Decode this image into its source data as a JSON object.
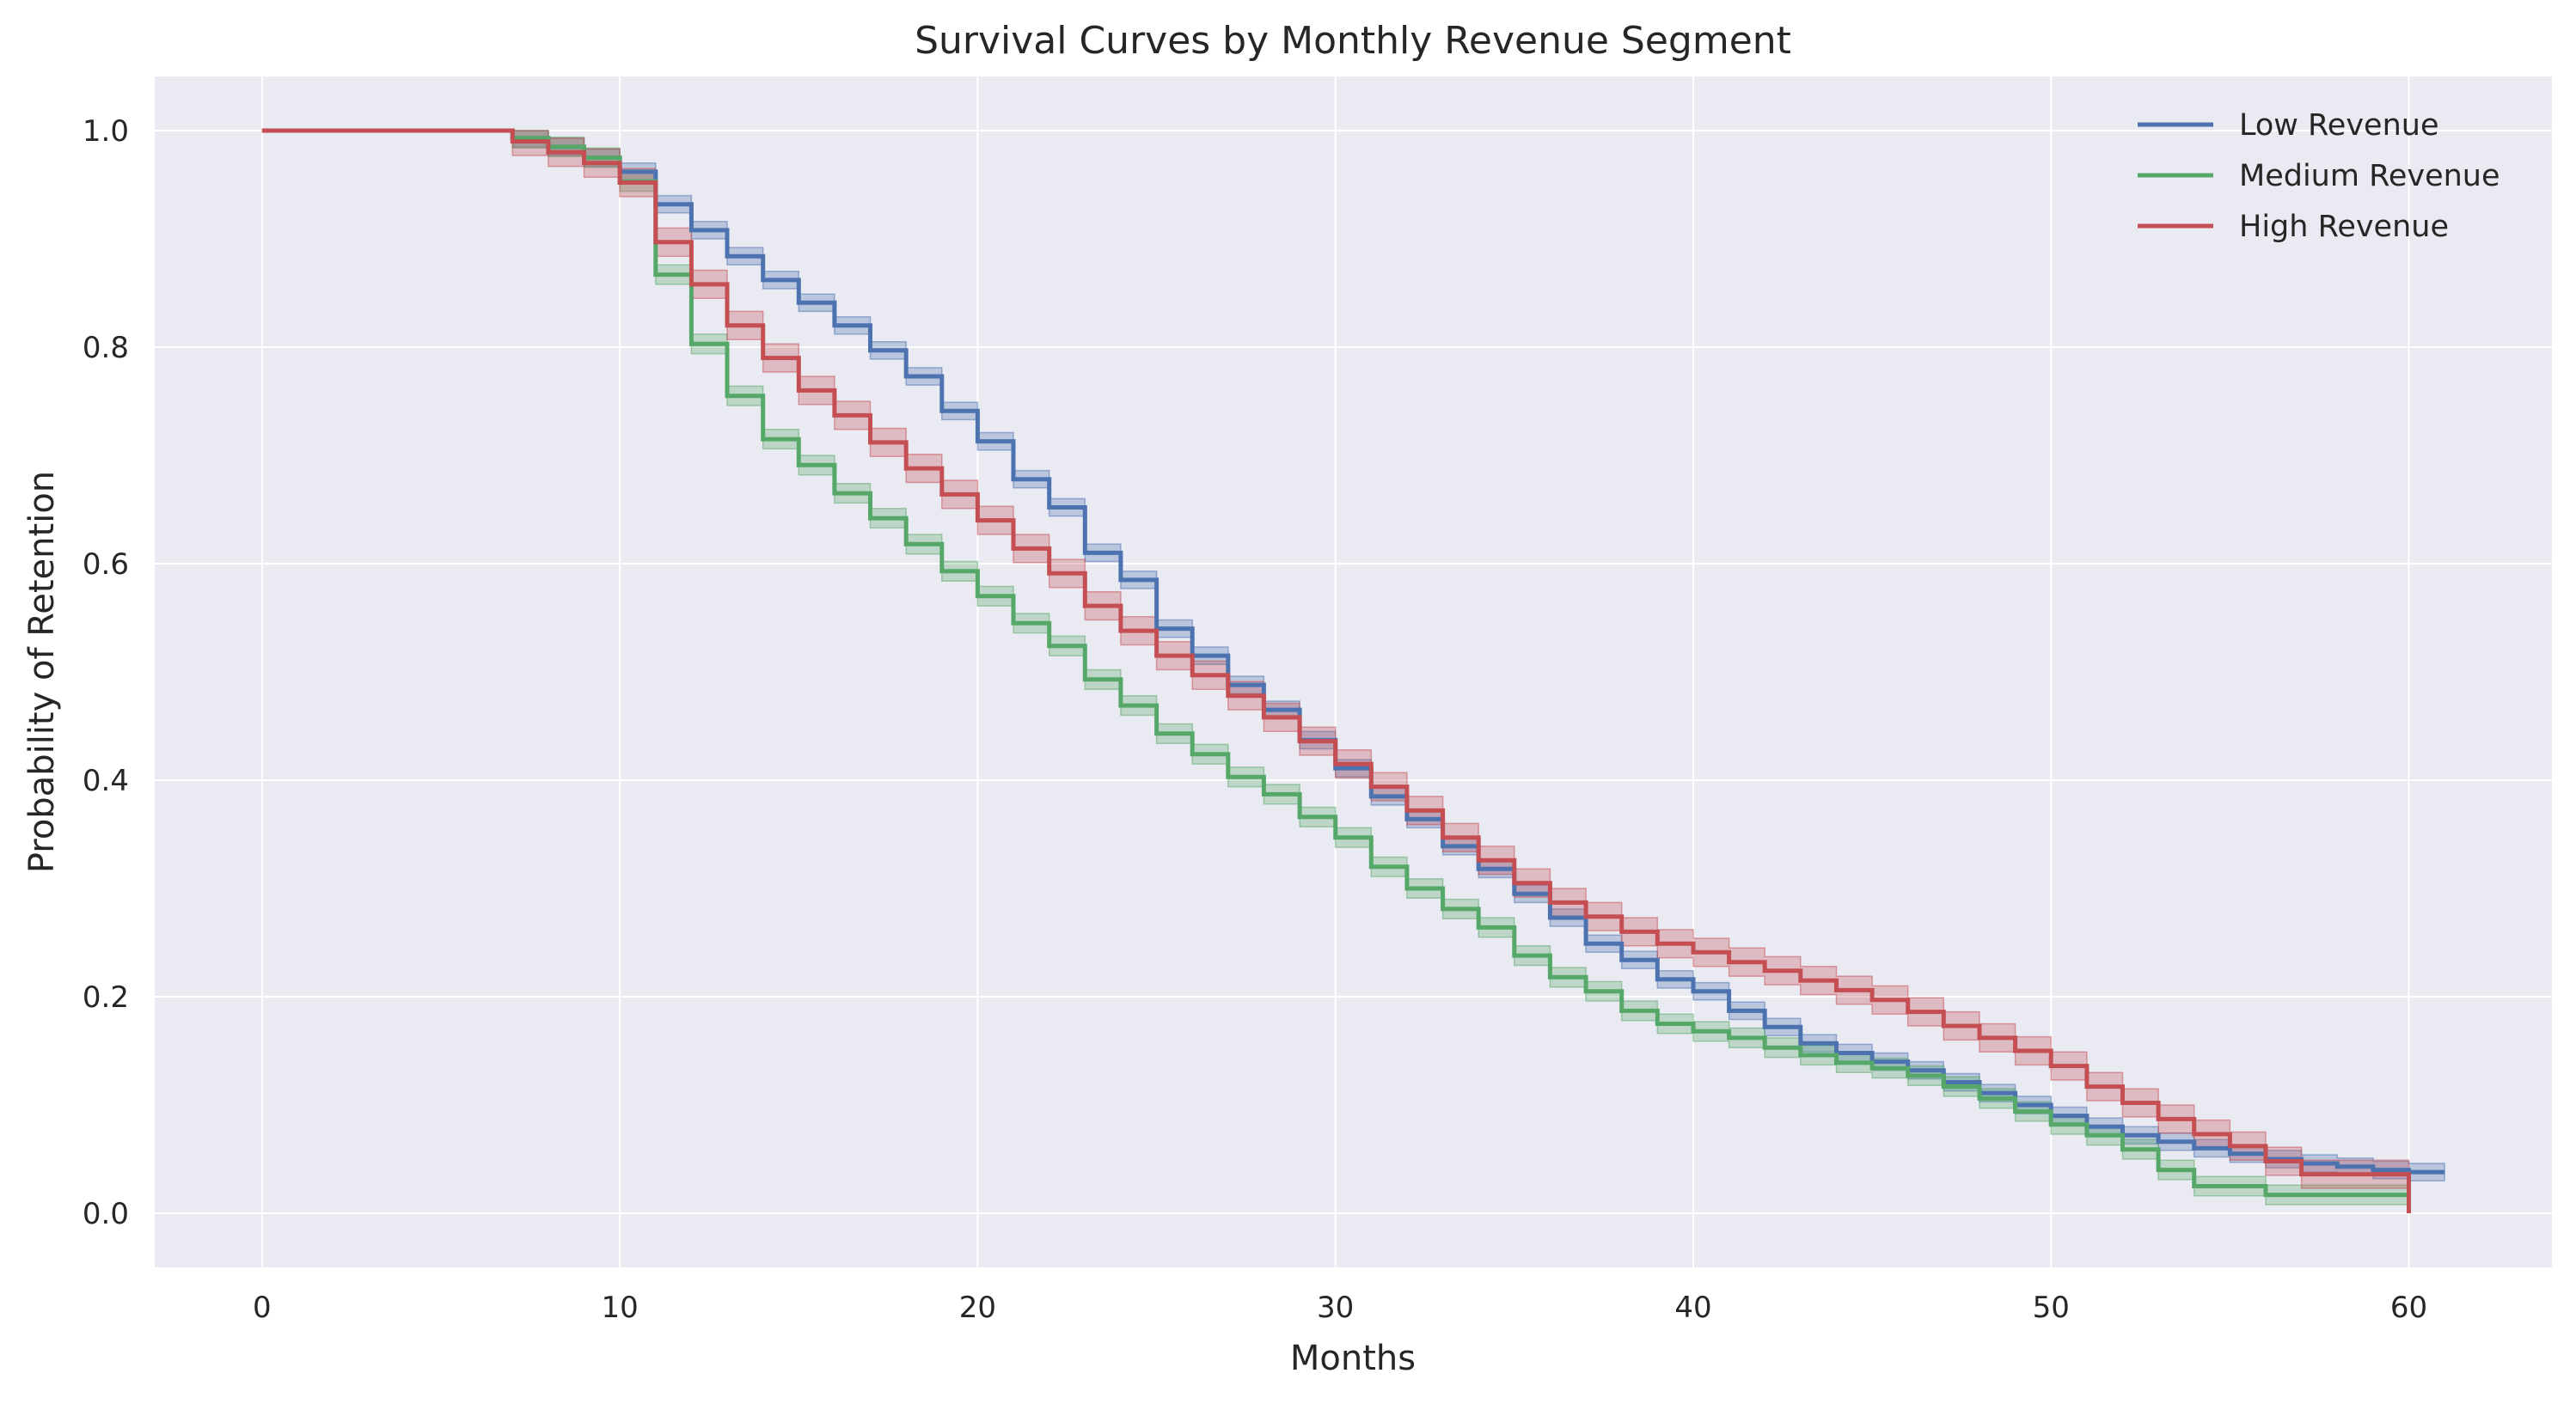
{
  "chart_data": {
    "type": "line",
    "step": true,
    "title": "Survival Curves by Monthly Revenue Segment",
    "xlabel": "Months",
    "ylabel": "Probability of Retention",
    "xlim": [
      -3,
      64
    ],
    "ylim": [
      -0.05,
      1.05
    ],
    "xticks": [
      0,
      10,
      20,
      30,
      40,
      50,
      60
    ],
    "yticks": [
      0.0,
      0.2,
      0.4,
      0.6,
      0.8,
      1.0
    ],
    "xtick_labels": [
      "0",
      "10",
      "20",
      "30",
      "40",
      "50",
      "60"
    ],
    "ytick_labels": [
      "0.0",
      "0.2",
      "0.4",
      "0.6",
      "0.8",
      "1.0"
    ],
    "grid": true,
    "background": "#eaeaf2",
    "legend_position": "top-right",
    "series": [
      {
        "name": "Low Revenue",
        "color": "#4c72b0",
        "x": [
          0,
          7,
          8,
          9,
          10,
          11,
          12,
          13,
          14,
          15,
          16,
          17,
          18,
          19,
          20,
          21,
          22,
          23,
          24,
          25,
          26,
          27,
          28,
          29,
          30,
          31,
          32,
          33,
          34,
          35,
          36,
          37,
          38,
          39,
          40,
          41,
          42,
          43,
          44,
          45,
          46,
          47,
          48,
          49,
          50,
          51,
          52,
          53,
          54,
          55,
          56,
          57,
          58,
          59,
          60,
          61
        ],
        "y": [
          1.0,
          0.993,
          0.985,
          0.975,
          0.962,
          0.932,
          0.908,
          0.884,
          0.862,
          0.841,
          0.82,
          0.797,
          0.773,
          0.741,
          0.713,
          0.678,
          0.652,
          0.61,
          0.585,
          0.54,
          0.515,
          0.488,
          0.465,
          0.437,
          0.411,
          0.385,
          0.364,
          0.339,
          0.318,
          0.295,
          0.273,
          0.249,
          0.234,
          0.216,
          0.205,
          0.187,
          0.172,
          0.157,
          0.148,
          0.14,
          0.132,
          0.121,
          0.111,
          0.1,
          0.09,
          0.08,
          0.072,
          0.066,
          0.06,
          0.055,
          0.05,
          0.046,
          0.043,
          0.04,
          0.038,
          0.038
        ],
        "ci": 0.008
      },
      {
        "name": "Medium Revenue",
        "color": "#55a868",
        "x": [
          0,
          7,
          8,
          9,
          10,
          11,
          12,
          13,
          14,
          15,
          16,
          17,
          18,
          19,
          20,
          21,
          22,
          23,
          24,
          25,
          26,
          27,
          28,
          29,
          30,
          31,
          32,
          33,
          34,
          35,
          36,
          37,
          38,
          39,
          40,
          41,
          42,
          43,
          44,
          45,
          46,
          47,
          48,
          49,
          50,
          51,
          52,
          53,
          54,
          55,
          56,
          57,
          58,
          59,
          60
        ],
        "y": [
          1.0,
          0.993,
          0.985,
          0.975,
          0.953,
          0.867,
          0.803,
          0.755,
          0.715,
          0.691,
          0.665,
          0.642,
          0.618,
          0.593,
          0.57,
          0.545,
          0.524,
          0.493,
          0.469,
          0.443,
          0.424,
          0.403,
          0.387,
          0.366,
          0.347,
          0.32,
          0.3,
          0.281,
          0.264,
          0.238,
          0.218,
          0.205,
          0.187,
          0.175,
          0.168,
          0.162,
          0.153,
          0.146,
          0.139,
          0.134,
          0.127,
          0.117,
          0.106,
          0.094,
          0.082,
          0.072,
          0.059,
          0.04,
          0.025,
          0.025,
          0.017,
          0.017,
          0.017,
          0.017,
          0.017
        ],
        "ci": 0.009
      },
      {
        "name": "High Revenue",
        "color": "#c44e52",
        "x": [
          0,
          7,
          8,
          9,
          10,
          11,
          12,
          13,
          14,
          15,
          16,
          17,
          18,
          19,
          20,
          21,
          22,
          23,
          24,
          25,
          26,
          27,
          28,
          29,
          30,
          31,
          32,
          33,
          34,
          35,
          36,
          37,
          38,
          39,
          40,
          41,
          42,
          43,
          44,
          45,
          46,
          47,
          48,
          49,
          50,
          51,
          52,
          53,
          54,
          55,
          56,
          57,
          58,
          59,
          60,
          60
        ],
        "y": [
          1.0,
          0.99,
          0.98,
          0.97,
          0.952,
          0.897,
          0.858,
          0.82,
          0.79,
          0.76,
          0.737,
          0.712,
          0.688,
          0.664,
          0.64,
          0.614,
          0.591,
          0.561,
          0.538,
          0.515,
          0.497,
          0.478,
          0.458,
          0.436,
          0.415,
          0.394,
          0.372,
          0.347,
          0.326,
          0.305,
          0.287,
          0.274,
          0.26,
          0.249,
          0.241,
          0.232,
          0.224,
          0.215,
          0.206,
          0.197,
          0.186,
          0.173,
          0.162,
          0.15,
          0.136,
          0.117,
          0.102,
          0.087,
          0.073,
          0.062,
          0.048,
          0.036,
          0.036,
          0.036,
          0.036,
          0.0
        ],
        "ci": 0.013
      }
    ]
  }
}
